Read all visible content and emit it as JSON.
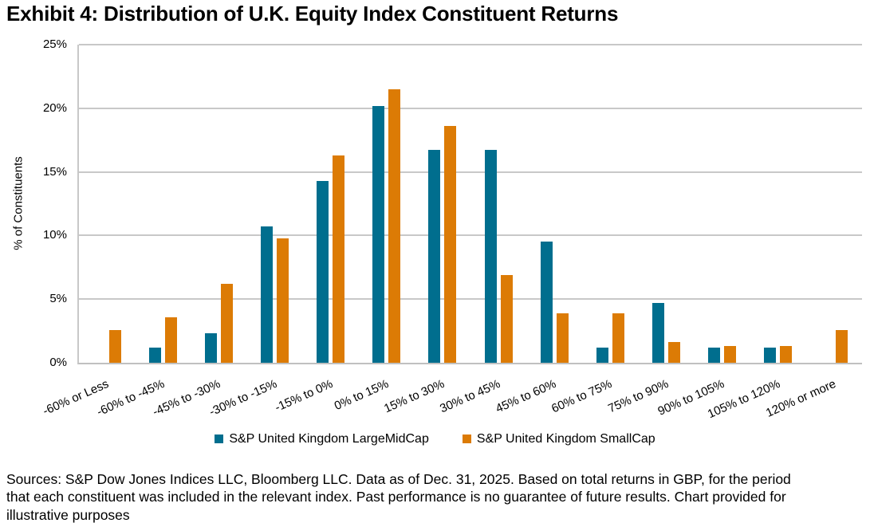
{
  "title": "Exhibit 4: Distribution of U.K. Equity Index Constituent Returns",
  "chart_data": {
    "type": "bar",
    "title": "Exhibit 4: Distribution of U.K. Equity Index Constituent Returns",
    "xlabel": "",
    "ylabel": "% of Constituents",
    "ylim": [
      0,
      25
    ],
    "ytick_step": 5,
    "ytick_suffix": "%",
    "grid": true,
    "legend_position": "bottom",
    "categories": [
      "-60% or Less",
      "-60% to -45%",
      "-45% to -30%",
      "-30% to -15%",
      "-15% to 0%",
      "0% to 15%",
      "15% to 30%",
      "30% to 45%",
      "45% to 60%",
      "60% to 75%",
      "75% to 90%",
      "90% to 105%",
      "105% to 120%",
      "120% or more"
    ],
    "series": [
      {
        "name": "S&P United Kingdom LargeMidCap",
        "color": "#006E8E",
        "values": [
          0,
          1.2,
          2.3,
          10.7,
          14.3,
          20.2,
          16.7,
          16.7,
          9.5,
          1.2,
          4.7,
          1.2,
          1.2,
          0
        ]
      },
      {
        "name": "S&P United Kingdom SmallCap",
        "color": "#DC7B05",
        "values": [
          2.6,
          3.6,
          6.2,
          9.8,
          16.3,
          21.5,
          18.6,
          6.9,
          3.9,
          3.9,
          1.6,
          1.3,
          1.3,
          2.6
        ]
      }
    ]
  },
  "colors": {
    "gridline": "#C8C8C8",
    "axis": "#C0C0C0",
    "text": "#000000",
    "background": "#FFFFFF"
  },
  "footer": {
    "lines": [
      "Sources: S&P Dow Jones Indices LLC, Bloomberg LLC. Data as of Dec. 31, 2025. Based on total returns in GBP, for the period",
      "that each constituent was included in the relevant index. Past performance is no guarantee of future results. Chart provided for",
      "illustrative purposes"
    ]
  }
}
